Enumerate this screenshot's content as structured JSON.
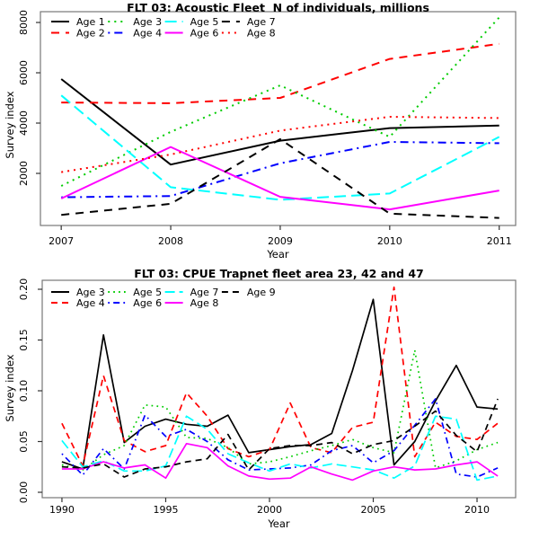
{
  "figure_background": "#ffffff",
  "palette": {
    "black": "#000000",
    "red": "#FF0000",
    "green": "#00CC00",
    "blue": "#0000FF",
    "cyan": "#00FFFF",
    "magenta": "#FF00FF",
    "box_border": "#777777",
    "tick": "#333333",
    "text": "#000000"
  },
  "chart_data": [
    {
      "id": "acoustic-fleet",
      "type": "line",
      "title": "FLT 03: Acoustic Fleet  N of individuals, millions",
      "xlabel": "Year",
      "ylabel": "Survey index",
      "grid": false,
      "legend_position": "top-left",
      "legend_rows": 2,
      "x": [
        2007,
        2008,
        2009,
        2010,
        2011
      ],
      "xticks": [
        2007,
        2008,
        2009,
        2010,
        2011
      ],
      "xtick_labels": [
        "2007",
        "2008",
        "2009",
        "2010",
        "2011"
      ],
      "yticks": [
        2000,
        4000,
        6000,
        8000
      ],
      "ytick_labels": [
        "2000",
        "4000",
        "6000",
        "8000"
      ],
      "xlim": [
        2006.81,
        2011.15
      ],
      "ylim": [
        -71,
        8429
      ],
      "series": [
        {
          "name": "Age 1",
          "color": "#000000",
          "linetype": "solid",
          "values": [
            5750,
            2350,
            3300,
            3800,
            3900
          ]
        },
        {
          "name": "Age 2",
          "color": "#FF0000",
          "linetype": "dashed",
          "values": [
            4820,
            4790,
            5000,
            6550,
            7150
          ]
        },
        {
          "name": "Age 3",
          "color": "#00CC00",
          "linetype": "dotted",
          "values": [
            1500,
            3650,
            5500,
            3450,
            8200
          ]
        },
        {
          "name": "Age 4",
          "color": "#0000FF",
          "linetype": "dotdash",
          "values": [
            1050,
            1100,
            2400,
            3250,
            3200
          ]
        },
        {
          "name": "Age 5",
          "color": "#00FFFF",
          "linetype": "longdash",
          "values": [
            5100,
            1450,
            950,
            1200,
            3450
          ]
        },
        {
          "name": "Age 6",
          "color": "#FF00FF",
          "linetype": "solid",
          "values": [
            1000,
            3050,
            1070,
            570,
            1320
          ]
        },
        {
          "name": "Age 7",
          "color": "#000000",
          "linetype": "dashed",
          "values": [
            350,
            790,
            3360,
            400,
            230
          ]
        },
        {
          "name": "Age 8",
          "color": "#FF0000",
          "linetype": "dotted",
          "values": [
            2050,
            2750,
            3700,
            4250,
            4200
          ]
        }
      ]
    },
    {
      "id": "cpue-trapnet",
      "type": "line",
      "title": "FLT 03: CPUE Trapnet fleet area 23, 42 and 47",
      "xlabel": "Year",
      "ylabel": "Survey index",
      "grid": false,
      "legend_position": "top-left",
      "legend_rows": 2,
      "x": [
        1990,
        1991,
        1992,
        1993,
        1994,
        1995,
        1996,
        1997,
        1998,
        1999,
        2000,
        2001,
        2002,
        2003,
        2004,
        2005,
        2006,
        2007,
        2008,
        2009,
        2010,
        2011
      ],
      "xticks": [
        1990,
        1995,
        2000,
        2005,
        2010
      ],
      "xtick_labels": [
        "1990",
        "1995",
        "2000",
        "2005",
        "2010"
      ],
      "yticks": [
        0.0,
        0.05,
        0.1,
        0.15,
        0.2
      ],
      "ytick_labels": [
        "0.00",
        "0.05",
        "0.10",
        "0.15",
        "0.20"
      ],
      "xlim": [
        1989.05,
        2011.86
      ],
      "ylim": [
        -0.00531,
        0.20885
      ],
      "series": [
        {
          "name": "Age 3",
          "color": "#000000",
          "linetype": "solid",
          "values": [
            0.03,
            0.023,
            0.155,
            0.049,
            0.065,
            0.072,
            0.067,
            0.065,
            0.076,
            0.039,
            0.042,
            0.045,
            0.047,
            0.058,
            0.12,
            0.19,
            0.027,
            0.05,
            0.09,
            0.125,
            0.084,
            0.082
          ]
        },
        {
          "name": "Age 4",
          "color": "#FF0000",
          "linetype": "dashed",
          "values": [
            0.068,
            0.026,
            0.115,
            0.051,
            0.04,
            0.046,
            0.098,
            0.075,
            0.043,
            0.035,
            0.042,
            0.088,
            0.044,
            0.039,
            0.064,
            0.069,
            0.202,
            0.035,
            0.069,
            0.055,
            0.052,
            0.068
          ]
        },
        {
          "name": "Age 5",
          "color": "#00CC00",
          "linetype": "dotted",
          "values": [
            0.027,
            0.022,
            0.037,
            0.046,
            0.086,
            0.084,
            0.054,
            0.053,
            0.044,
            0.028,
            0.03,
            0.035,
            0.041,
            0.046,
            0.052,
            0.044,
            0.039,
            0.14,
            0.024,
            0.031,
            0.042,
            0.049
          ]
        },
        {
          "name": "Age 6",
          "color": "#0000FF",
          "linetype": "dotdash",
          "values": [
            0.038,
            0.017,
            0.043,
            0.023,
            0.076,
            0.055,
            0.062,
            0.05,
            0.032,
            0.022,
            0.023,
            0.024,
            0.027,
            0.041,
            0.046,
            0.029,
            0.041,
            0.066,
            0.092,
            0.018,
            0.015,
            0.024
          ]
        },
        {
          "name": "Age 7",
          "color": "#00FFFF",
          "linetype": "longdash",
          "values": [
            0.051,
            0.025,
            0.031,
            0.021,
            0.021,
            0.026,
            0.075,
            0.062,
            0.038,
            0.029,
            0.021,
            0.028,
            0.024,
            0.028,
            0.025,
            0.022,
            0.014,
            0.026,
            0.075,
            0.072,
            0.012,
            0.016
          ]
        },
        {
          "name": "Age 8",
          "color": "#FF00FF",
          "linetype": "solid",
          "values": [
            0.023,
            0.023,
            0.03,
            0.024,
            0.027,
            0.014,
            0.048,
            0.044,
            0.026,
            0.016,
            0.013,
            0.014,
            0.025,
            0.018,
            0.012,
            0.021,
            0.025,
            0.022,
            0.023,
            0.027,
            0.03,
            0.016
          ]
        },
        {
          "name": "Age 9",
          "color": "#000000",
          "linetype": "dashed",
          "values": [
            0.025,
            0.024,
            0.028,
            0.015,
            0.023,
            0.025,
            0.03,
            0.033,
            0.057,
            0.022,
            0.043,
            0.046,
            0.046,
            0.049,
            0.038,
            0.047,
            0.051,
            0.065,
            0.08,
            0.056,
            0.04,
            0.092
          ]
        }
      ]
    }
  ]
}
